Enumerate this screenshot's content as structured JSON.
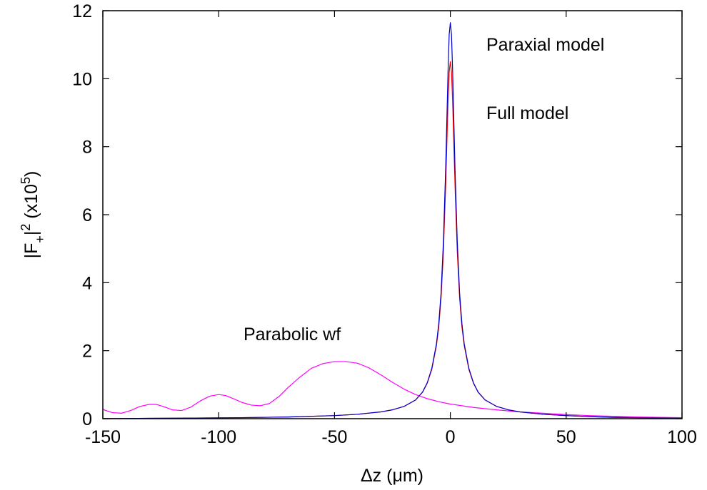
{
  "chart_data": {
    "type": "line",
    "xlabel": "Δz (μm)",
    "ylabel": {
      "base": "|F",
      "sub": "+",
      "mid": "|",
      "sup": "2",
      "tail": " (x10",
      "sup2": "5",
      "end": ")"
    },
    "xlim": [
      -150,
      100
    ],
    "ylim": [
      0,
      12
    ],
    "xticks": [
      "-150",
      "-100",
      "-50",
      "0",
      "50",
      "100"
    ],
    "yticks": [
      "0",
      "2",
      "4",
      "6",
      "8",
      "10",
      "12"
    ],
    "grid": false,
    "annotations": [
      {
        "text": "Paraxial model"
      },
      {
        "text": "Full model"
      },
      {
        "text": "Parabolic wf"
      }
    ],
    "series": [
      {
        "color": "#ff00ff",
        "x": [
          -150,
          -146,
          -142,
          -138,
          -134,
          -130,
          -127,
          -124,
          -120,
          -116,
          -112,
          -108,
          -104,
          -100,
          -97,
          -94,
          -90,
          -86,
          -82,
          -78,
          -74,
          -70,
          -65,
          -60,
          -55,
          -50,
          -45,
          -40,
          -35,
          -30,
          -25,
          -20,
          -15,
          -10,
          -5,
          0,
          10,
          20,
          30,
          40,
          50,
          60,
          70,
          80,
          90,
          100
        ],
        "y": [
          0.27,
          0.18,
          0.16,
          0.24,
          0.36,
          0.42,
          0.42,
          0.36,
          0.26,
          0.24,
          0.34,
          0.52,
          0.66,
          0.71,
          0.68,
          0.6,
          0.48,
          0.4,
          0.38,
          0.45,
          0.65,
          0.92,
          1.22,
          1.48,
          1.62,
          1.68,
          1.68,
          1.63,
          1.49,
          1.29,
          1.07,
          0.87,
          0.71,
          0.59,
          0.5,
          0.43,
          0.33,
          0.26,
          0.2,
          0.16,
          0.12,
          0.09,
          0.07,
          0.05,
          0.04,
          0.03
        ]
      },
      {
        "color": "#ff0000",
        "x": [
          -150,
          -130,
          -110,
          -90,
          -70,
          -50,
          -40,
          -30,
          -25,
          -20,
          -15,
          -12,
          -10,
          -8,
          -6,
          -5,
          -4,
          -3,
          -2,
          -1,
          -0.5,
          0,
          0.5,
          1,
          2,
          3,
          4,
          5,
          6,
          8,
          10,
          12,
          15,
          20,
          25,
          30,
          40,
          50,
          60,
          70,
          80,
          90,
          100
        ],
        "y": [
          0.0,
          0.01,
          0.02,
          0.03,
          0.05,
          0.09,
          0.13,
          0.2,
          0.26,
          0.36,
          0.55,
          0.78,
          1.04,
          1.45,
          2.15,
          2.7,
          3.55,
          4.9,
          6.9,
          9.3,
          10.2,
          10.5,
          10.2,
          9.3,
          6.9,
          4.9,
          3.55,
          2.7,
          2.15,
          1.45,
          1.04,
          0.78,
          0.55,
          0.36,
          0.26,
          0.2,
          0.13,
          0.09,
          0.06,
          0.04,
          0.03,
          0.02,
          0.01
        ]
      },
      {
        "color": "#0000cc",
        "x": [
          -150,
          -130,
          -110,
          -90,
          -70,
          -50,
          -40,
          -30,
          -25,
          -20,
          -15,
          -12,
          -10,
          -8,
          -6,
          -5,
          -4,
          -3,
          -2,
          -1,
          -0.5,
          0,
          0.5,
          1,
          2,
          3,
          4,
          5,
          6,
          8,
          10,
          12,
          15,
          20,
          25,
          30,
          40,
          50,
          60,
          70,
          80,
          90,
          100
        ],
        "y": [
          0.0,
          0.01,
          0.02,
          0.03,
          0.05,
          0.09,
          0.13,
          0.2,
          0.26,
          0.36,
          0.55,
          0.78,
          1.05,
          1.48,
          2.2,
          2.8,
          3.7,
          5.2,
          7.4,
          10.2,
          11.3,
          11.65,
          11.3,
          10.2,
          7.4,
          5.2,
          3.7,
          2.8,
          2.2,
          1.48,
          1.05,
          0.78,
          0.55,
          0.36,
          0.26,
          0.2,
          0.13,
          0.09,
          0.06,
          0.04,
          0.03,
          0.02,
          0.01
        ]
      }
    ]
  }
}
